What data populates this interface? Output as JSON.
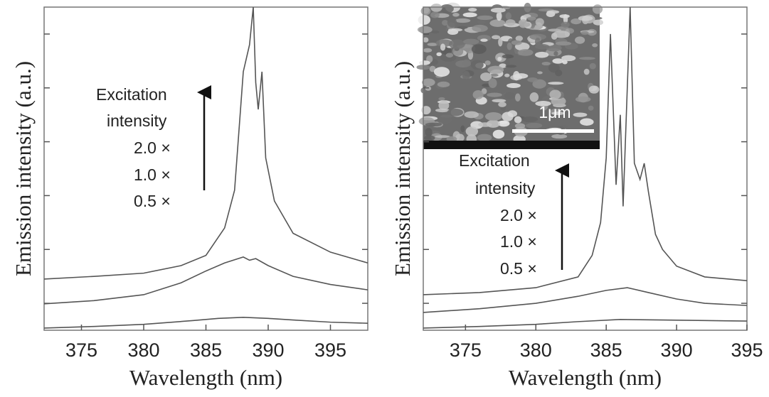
{
  "chart_data": [
    {
      "type": "line",
      "x_label": "Wavelength (nm)",
      "y_label": "Emission intensity (a.u.)",
      "xlim": [
        372,
        398
      ],
      "xticks": [
        375,
        380,
        385,
        390,
        395
      ],
      "ylim": [
        0,
        6
      ],
      "yticks": [
        0.5,
        1.5,
        2.5,
        3.5,
        4.5,
        5.5
      ],
      "annotations": [
        "Excitation",
        "intensity",
        "2.0 ×",
        "1.0 ×",
        "0.5 ×"
      ],
      "series": [
        {
          "color": "#555555",
          "x": [
            372,
            376,
            380,
            384,
            386,
            388,
            390,
            392,
            395,
            398
          ],
          "values": [
            0.04,
            0.07,
            0.11,
            0.18,
            0.22,
            0.24,
            0.22,
            0.19,
            0.15,
            0.13
          ]
        },
        {
          "color": "#555555",
          "x": [
            372,
            376,
            380,
            383,
            385,
            386.5,
            388,
            388.5,
            389,
            390,
            392,
            395,
            398
          ],
          "values": [
            0.49,
            0.55,
            0.66,
            0.88,
            1.1,
            1.25,
            1.36,
            1.3,
            1.33,
            1.2,
            1.0,
            0.85,
            0.75
          ]
        },
        {
          "color": "#555555",
          "x": [
            372,
            376,
            380,
            383,
            385,
            386.5,
            387.3,
            388,
            388.5,
            388.8,
            389,
            389.2,
            389.5,
            389.8,
            390.5,
            392,
            395,
            398
          ],
          "values": [
            0.95,
            1.0,
            1.06,
            1.2,
            1.39,
            1.9,
            2.6,
            4.8,
            5.3,
            6.0,
            4.6,
            4.1,
            4.8,
            3.2,
            2.4,
            1.8,
            1.45,
            1.25
          ]
        }
      ]
    },
    {
      "type": "line",
      "x_label": "Wavelength (nm)",
      "y_label": "Emission intensity (a.u.)",
      "xlim": [
        372,
        395
      ],
      "xticks": [
        375,
        380,
        385,
        390,
        395
      ],
      "ylim": [
        0,
        6
      ],
      "yticks": [
        0.5,
        1.5,
        2.5,
        3.5,
        4.5,
        5.5
      ],
      "annotations": [
        "Excitation",
        "intensity",
        "2.0 ×",
        "1.0 ×",
        "0.5 ×"
      ],
      "inset_label": "1μm",
      "series": [
        {
          "color": "#555555",
          "x": [
            372,
            376,
            380,
            383,
            386,
            389,
            392,
            395
          ],
          "values": [
            0.04,
            0.07,
            0.11,
            0.16,
            0.2,
            0.19,
            0.18,
            0.17
          ]
        },
        {
          "color": "#555555",
          "x": [
            372,
            376,
            380,
            383,
            385,
            386.5,
            388,
            390,
            392,
            395
          ],
          "values": [
            0.33,
            0.4,
            0.5,
            0.63,
            0.74,
            0.79,
            0.7,
            0.58,
            0.5,
            0.46
          ]
        },
        {
          "color": "#555555",
          "x": [
            372,
            376,
            380,
            383,
            384,
            384.6,
            385,
            385.3,
            385.7,
            386,
            386.2,
            386.7,
            387,
            387.4,
            387.7,
            388,
            388.5,
            389,
            390,
            392,
            395
          ],
          "values": [
            0.66,
            0.7,
            0.79,
            0.99,
            1.39,
            2.0,
            3.2,
            5.5,
            2.7,
            4.0,
            2.3,
            6.0,
            3.1,
            2.8,
            3.1,
            2.57,
            1.78,
            1.5,
            1.19,
            0.99,
            0.92
          ]
        }
      ]
    }
  ]
}
